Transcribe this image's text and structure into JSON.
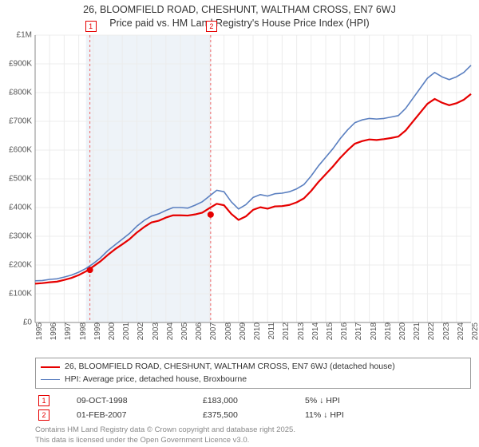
{
  "title_line1": "26, BLOOMFIELD ROAD, CHESHUNT, WALTHAM CROSS, EN7 6WJ",
  "title_line2": "Price paid vs. HM Land Registry's House Price Index (HPI)",
  "y_axis": {
    "min": 0,
    "max": 1000000,
    "step": 100000,
    "labels": [
      "£0",
      "£100K",
      "£200K",
      "£300K",
      "£400K",
      "£500K",
      "£600K",
      "£700K",
      "£800K",
      "£900K",
      "£1M"
    ]
  },
  "x_axis": {
    "start_year": 1995,
    "end_year": 2025
  },
  "grid_color": "#ececec",
  "axis_color": "#888",
  "shade": {
    "from": 1998.5,
    "to": 2007.1,
    "fill": "#eef3f8"
  },
  "series": {
    "hpi": {
      "label": "HPI: Average price, detached house, Broxbourne",
      "color": "#5a7fc0",
      "width": 1.6,
      "points": [
        [
          1995.0,
          145000
        ],
        [
          1995.5,
          146000
        ],
        [
          1996.0,
          150000
        ],
        [
          1996.5,
          152000
        ],
        [
          1997.0,
          158000
        ],
        [
          1997.5,
          165000
        ],
        [
          1998.0,
          175000
        ],
        [
          1998.5,
          188000
        ],
        [
          1999.0,
          205000
        ],
        [
          1999.5,
          225000
        ],
        [
          2000.0,
          250000
        ],
        [
          2000.5,
          270000
        ],
        [
          2001.0,
          290000
        ],
        [
          2001.5,
          310000
        ],
        [
          2002.0,
          335000
        ],
        [
          2002.5,
          355000
        ],
        [
          2003.0,
          370000
        ],
        [
          2003.5,
          378000
        ],
        [
          2004.0,
          390000
        ],
        [
          2004.5,
          400000
        ],
        [
          2005.0,
          400000
        ],
        [
          2005.5,
          398000
        ],
        [
          2006.0,
          408000
        ],
        [
          2006.5,
          420000
        ],
        [
          2007.0,
          440000
        ],
        [
          2007.5,
          460000
        ],
        [
          2008.0,
          455000
        ],
        [
          2008.5,
          420000
        ],
        [
          2009.0,
          395000
        ],
        [
          2009.5,
          410000
        ],
        [
          2010.0,
          435000
        ],
        [
          2010.5,
          445000
        ],
        [
          2011.0,
          440000
        ],
        [
          2011.5,
          448000
        ],
        [
          2012.0,
          450000
        ],
        [
          2012.5,
          455000
        ],
        [
          2013.0,
          465000
        ],
        [
          2013.5,
          480000
        ],
        [
          2014.0,
          510000
        ],
        [
          2014.5,
          545000
        ],
        [
          2015.0,
          575000
        ],
        [
          2015.5,
          605000
        ],
        [
          2016.0,
          640000
        ],
        [
          2016.5,
          670000
        ],
        [
          2017.0,
          695000
        ],
        [
          2017.5,
          705000
        ],
        [
          2018.0,
          710000
        ],
        [
          2018.5,
          708000
        ],
        [
          2019.0,
          710000
        ],
        [
          2019.5,
          715000
        ],
        [
          2020.0,
          720000
        ],
        [
          2020.5,
          745000
        ],
        [
          2021.0,
          780000
        ],
        [
          2021.5,
          815000
        ],
        [
          2022.0,
          850000
        ],
        [
          2022.5,
          870000
        ],
        [
          2023.0,
          855000
        ],
        [
          2023.5,
          845000
        ],
        [
          2024.0,
          855000
        ],
        [
          2024.5,
          870000
        ],
        [
          2025.0,
          895000
        ]
      ]
    },
    "subject": {
      "label": "26, BLOOMFIELD ROAD, CHESHUNT, WALTHAM CROSS, EN7 6WJ (detached house)",
      "color": "#e60000",
      "width": 2.2,
      "points": [
        [
          1995.0,
          135000
        ],
        [
          1995.5,
          137000
        ],
        [
          1996.0,
          140000
        ],
        [
          1996.5,
          142000
        ],
        [
          1997.0,
          148000
        ],
        [
          1997.5,
          155000
        ],
        [
          1998.0,
          165000
        ],
        [
          1998.5,
          178000
        ],
        [
          1999.0,
          195000
        ],
        [
          1999.5,
          213000
        ],
        [
          2000.0,
          235000
        ],
        [
          2000.5,
          255000
        ],
        [
          2001.0,
          272000
        ],
        [
          2001.5,
          290000
        ],
        [
          2002.0,
          313000
        ],
        [
          2002.5,
          332000
        ],
        [
          2003.0,
          348000
        ],
        [
          2003.5,
          354000
        ],
        [
          2004.0,
          365000
        ],
        [
          2004.5,
          373000
        ],
        [
          2005.0,
          373000
        ],
        [
          2005.5,
          372000
        ],
        [
          2006.0,
          376000
        ],
        [
          2006.5,
          382000
        ],
        [
          2007.0,
          398000
        ],
        [
          2007.5,
          413000
        ],
        [
          2008.0,
          408000
        ],
        [
          2008.5,
          378000
        ],
        [
          2009.0,
          357000
        ],
        [
          2009.5,
          369000
        ],
        [
          2010.0,
          392000
        ],
        [
          2010.5,
          401000
        ],
        [
          2011.0,
          396000
        ],
        [
          2011.5,
          404000
        ],
        [
          2012.0,
          405000
        ],
        [
          2012.5,
          409000
        ],
        [
          2013.0,
          418000
        ],
        [
          2013.5,
          432000
        ],
        [
          2014.0,
          458000
        ],
        [
          2014.5,
          489000
        ],
        [
          2015.0,
          516000
        ],
        [
          2015.5,
          543000
        ],
        [
          2016.0,
          573000
        ],
        [
          2016.5,
          599000
        ],
        [
          2017.0,
          622000
        ],
        [
          2017.5,
          631000
        ],
        [
          2018.0,
          637000
        ],
        [
          2018.5,
          635000
        ],
        [
          2019.0,
          638000
        ],
        [
          2019.5,
          642000
        ],
        [
          2020.0,
          647000
        ],
        [
          2020.5,
          668000
        ],
        [
          2021.0,
          699000
        ],
        [
          2021.5,
          730000
        ],
        [
          2022.0,
          761000
        ],
        [
          2022.5,
          778000
        ],
        [
          2023.0,
          765000
        ],
        [
          2023.5,
          756000
        ],
        [
          2024.0,
          763000
        ],
        [
          2024.5,
          775000
        ],
        [
          2025.0,
          795000
        ]
      ]
    }
  },
  "transactions": [
    {
      "n": "1",
      "year_frac": 1998.77,
      "date": "09-OCT-1998",
      "price": 183000,
      "price_label": "£183,000",
      "delta": "5% ↓ HPI"
    },
    {
      "n": "2",
      "year_frac": 2007.08,
      "date": "01-FEB-2007",
      "price": 375500,
      "price_label": "£375,500",
      "delta": "11% ↓ HPI"
    }
  ],
  "marker_line_color": "#e66",
  "marker_line_dash": "3,3",
  "footer1": "Contains HM Land Registry data © Crown copyright and database right 2025.",
  "footer2": "This data is licensed under the Open Government Licence v3.0."
}
